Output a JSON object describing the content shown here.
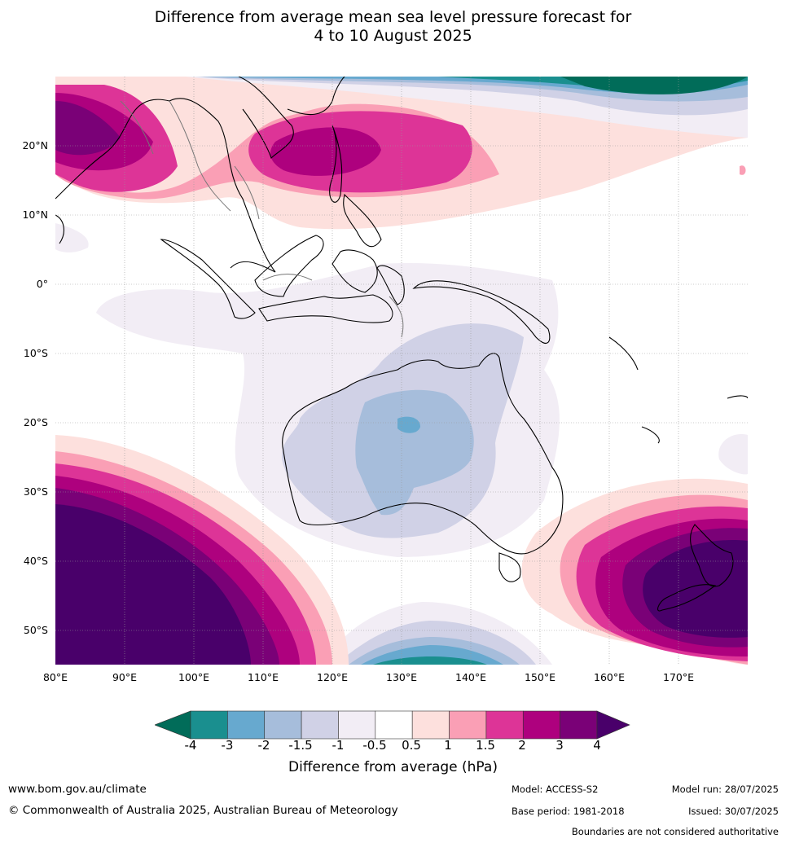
{
  "title": {
    "line1": "Difference from average mean sea level pressure forecast for",
    "line2": "4 to 10 August 2025"
  },
  "map": {
    "lon_range": [
      80,
      180
    ],
    "lat_range": [
      -55,
      30
    ],
    "lat_labels": [
      {
        "lat": 20,
        "label": "20°N"
      },
      {
        "lat": 10,
        "label": "10°N"
      },
      {
        "lat": 0,
        "label": "0°"
      },
      {
        "lat": -10,
        "label": "10°S"
      },
      {
        "lat": -20,
        "label": "20°S"
      },
      {
        "lat": -30,
        "label": "30°S"
      },
      {
        "lat": -40,
        "label": "40°S"
      },
      {
        "lat": -50,
        "label": "50°S"
      }
    ],
    "lon_labels": [
      {
        "lon": 80,
        "label": "80°E"
      },
      {
        "lon": 90,
        "label": "90°E"
      },
      {
        "lon": 100,
        "label": "100°E"
      },
      {
        "lon": 110,
        "label": "110°E"
      },
      {
        "lon": 120,
        "label": "120°E"
      },
      {
        "lon": 130,
        "label": "130°E"
      },
      {
        "lon": 140,
        "label": "140°E"
      },
      {
        "lon": 150,
        "label": "150°E"
      },
      {
        "lon": 160,
        "label": "160°E"
      },
      {
        "lon": 170,
        "label": "170°E"
      }
    ],
    "grid": true
  },
  "colorbar": {
    "title": "Difference from average (hPa)",
    "ticks": [
      "-4",
      "-3",
      "-2",
      "-1.5",
      "-1",
      "-0.5",
      "0.5",
      "1",
      "1.5",
      "2",
      "3",
      "4"
    ],
    "colors": [
      "#1a8f8f",
      "#67a9cf",
      "#a6bddb",
      "#d0d1e6",
      "#f2edf5",
      "#ffffff",
      "#fde0dd",
      "#fa9fb5",
      "#dd3497",
      "#ae017e",
      "#7a0177",
      "#49006a"
    ],
    "under_color": "#016c59",
    "over_color": "#49006a"
  },
  "footer": {
    "website": "www.bom.gov.au/climate",
    "copyright": "© Commonwealth of Australia 2025, Australian Bureau of Meteorology",
    "model": "Model: ACCESS-S2",
    "base_period": "Base period: 1981-2018",
    "model_run": "Model run: 28/07/2025",
    "issued": "Issued: 30/07/2025",
    "disclaimer": "Boundaries are not considered authoritative"
  }
}
